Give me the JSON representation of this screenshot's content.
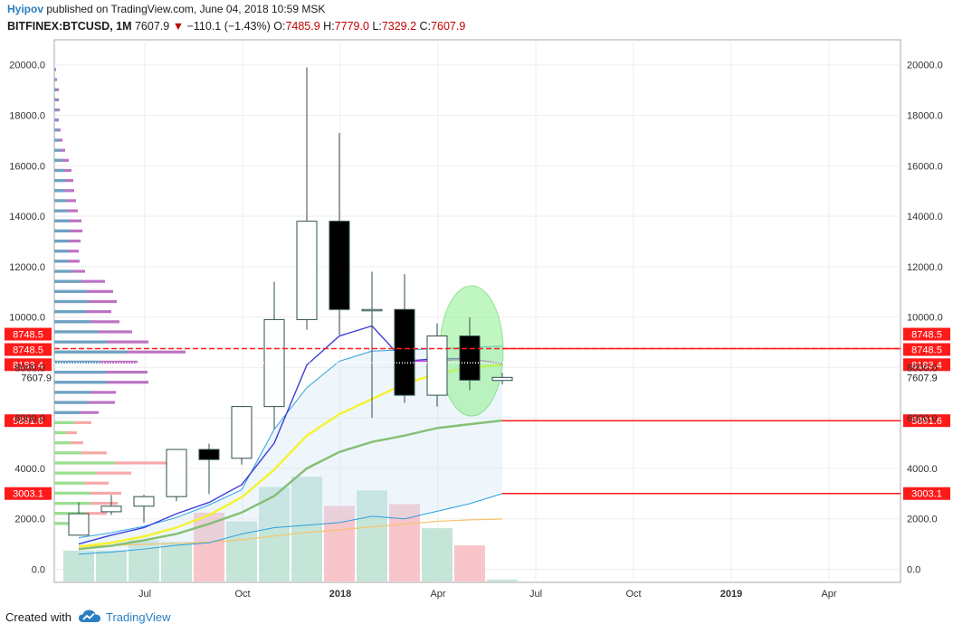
{
  "header": {
    "publisher": "Hyipov",
    "published_text": "published on TradingView.com, June 04, 2018 10:59 MSK",
    "symbol": "BITFINEX:BTCUSD, 1M",
    "last": "7607.9",
    "change": "−110.1 (−1.43%)",
    "o_label": "O:",
    "o_val": "7485.9",
    "h_label": "H:",
    "h_val": "7779.0",
    "l_label": "L:",
    "l_val": "7329.2",
    "c_label": "C:",
    "c_val": "7607.9"
  },
  "footer": {
    "created_with": "Created with",
    "brand": "TradingView"
  },
  "colors": {
    "up_body": "#ffffff",
    "down_body": "#000000",
    "candle_border": "#2f4f4f",
    "vol_up": "#b7dfcf",
    "vol_down": "#f6b6bd",
    "hline": "#ff1a1a",
    "ma_blue": "#3c3cd8",
    "ma_magenta": "#e040e0",
    "ma_yellow": "#f6f233",
    "ma_green": "#86bf76",
    "band_blue": "#2aa0e0",
    "band_orange": "#f5c46c",
    "highlight": "#8ef08e"
  },
  "chart_data": {
    "type": "candlestick",
    "symbol": "BITFINEX:BTCUSD",
    "interval": "1M",
    "x_ticks": [
      "Jul",
      "Oct",
      "2018",
      "Apr",
      "Jul",
      "Oct",
      "2019",
      "Apr"
    ],
    "y_ticks": [
      "0.0",
      "2000.0",
      "4000.0",
      "6000.0",
      "8000.0",
      "10000.0",
      "12000.0",
      "14000.0",
      "16000.0",
      "18000.0",
      "20000.0"
    ],
    "ylim": [
      -500,
      21000
    ],
    "candles": [
      {
        "date": "2017-05",
        "open": 1350,
        "high": 2650,
        "low": 1330,
        "close": 2200
      },
      {
        "date": "2017-06",
        "open": 2280,
        "high": 2950,
        "low": 2150,
        "close": 2500
      },
      {
        "date": "2017-07",
        "open": 2500,
        "high": 2950,
        "low": 1850,
        "close": 2880
      },
      {
        "date": "2017-08",
        "open": 2880,
        "high": 4750,
        "low": 2700,
        "close": 4750
      },
      {
        "date": "2017-09",
        "open": 4750,
        "high": 4980,
        "low": 2980,
        "close": 4350
      },
      {
        "date": "2017-10",
        "open": 4400,
        "high": 6450,
        "low": 4150,
        "close": 6450
      },
      {
        "date": "2017-11",
        "open": 6450,
        "high": 11400,
        "low": 5550,
        "close": 9900
      },
      {
        "date": "2017-12",
        "open": 9900,
        "high": 19900,
        "low": 9500,
        "close": 13800
      },
      {
        "date": "2018-01",
        "open": 13800,
        "high": 17300,
        "low": 9300,
        "close": 10300
      },
      {
        "date": "2018-02",
        "open": 10300,
        "high": 11800,
        "low": 6000,
        "close": 10300
      },
      {
        "date": "2018-03",
        "open": 10300,
        "high": 11700,
        "low": 6600,
        "close": 6900
      },
      {
        "date": "2018-04",
        "open": 6900,
        "high": 9750,
        "low": 6450,
        "close": 9250
      },
      {
        "date": "2018-05",
        "open": 9250,
        "high": 9990,
        "low": 7100,
        "close": 7500
      },
      {
        "date": "2018-06",
        "open": 7485.9,
        "high": 7779.0,
        "low": 7329.2,
        "close": 7607.9
      }
    ],
    "volume_relative": [
      {
        "date": "2017-05",
        "value": 0.18,
        "dir": "up"
      },
      {
        "date": "2017-06",
        "value": 0.18,
        "dir": "up"
      },
      {
        "date": "2017-07",
        "value": 0.24,
        "dir": "up"
      },
      {
        "date": "2017-08",
        "value": 0.23,
        "dir": "up"
      },
      {
        "date": "2017-09",
        "value": 0.4,
        "dir": "down"
      },
      {
        "date": "2017-10",
        "value": 0.35,
        "dir": "up"
      },
      {
        "date": "2017-11",
        "value": 0.55,
        "dir": "up"
      },
      {
        "date": "2017-12",
        "value": 0.61,
        "dir": "up"
      },
      {
        "date": "2018-01",
        "value": 0.44,
        "dir": "down"
      },
      {
        "date": "2018-02",
        "value": 0.53,
        "dir": "up"
      },
      {
        "date": "2018-03",
        "value": 0.45,
        "dir": "down"
      },
      {
        "date": "2018-04",
        "value": 0.31,
        "dir": "up"
      },
      {
        "date": "2018-05",
        "value": 0.21,
        "dir": "down"
      },
      {
        "date": "2018-06",
        "value": 0.01,
        "dir": "up"
      }
    ],
    "price_lines": [
      {
        "label": "8748.5",
        "value": 8748.5,
        "style": "solid"
      },
      {
        "label": "8748.5",
        "value": 8748.5,
        "style": "dashed"
      },
      {
        "label": "8183.4",
        "value": 8183.4,
        "style": "dotted"
      },
      {
        "label": "5891.6",
        "value": 5891.6,
        "style": "solid"
      },
      {
        "label": "3003.1",
        "value": 3003.1,
        "style": "solid"
      }
    ],
    "last_price_label": "7607.9",
    "indicators": {
      "ma_blue": [
        1000,
        1350,
        1650,
        2200,
        2650,
        3350,
        5000,
        8100,
        9250,
        9650,
        8250,
        8350,
        8350
      ],
      "ma_magenta_start_index": 10,
      "ma_magenta": [
        8250,
        8250,
        8350,
        8150
      ],
      "ma_yellow": [
        900,
        1050,
        1300,
        1650,
        2150,
        2850,
        3950,
        5300,
        6150,
        6750,
        7350,
        7750,
        8000,
        8100
      ],
      "ma_green": [
        800,
        930,
        1150,
        1400,
        1800,
        2250,
        2900,
        4000,
        4650,
        5050,
        5300,
        5600,
        5750,
        5900
      ],
      "band_upper": [
        1250,
        1450,
        1700,
        2050,
        2550,
        3150,
        5550,
        7200,
        8250,
        8650,
        8700,
        8750,
        8800,
        8850
      ],
      "band_lower": [
        600,
        680,
        800,
        950,
        1050,
        1400,
        1650,
        1750,
        1850,
        2100,
        2000,
        2300,
        2600,
        3000
      ],
      "band_orange": [
        900,
        940,
        990,
        1020,
        1080,
        1160,
        1320,
        1460,
        1560,
        1680,
        1790,
        1900,
        1960,
        1990
      ]
    },
    "volume_profile": [
      {
        "price": 19800,
        "total": 2,
        "buy": 1
      },
      {
        "price": 19400,
        "total": 3,
        "buy": 2
      },
      {
        "price": 19000,
        "total": 5,
        "buy": 2
      },
      {
        "price": 18600,
        "total": 5,
        "buy": 3
      },
      {
        "price": 18200,
        "total": 6,
        "buy": 3
      },
      {
        "price": 17800,
        "total": 5,
        "buy": 3
      },
      {
        "price": 17400,
        "total": 7,
        "buy": 4
      },
      {
        "price": 17000,
        "total": 9,
        "buy": 5
      },
      {
        "price": 16600,
        "total": 12,
        "buy": 7
      },
      {
        "price": 16200,
        "total": 16,
        "buy": 9
      },
      {
        "price": 15800,
        "total": 19,
        "buy": 11
      },
      {
        "price": 15400,
        "total": 21,
        "buy": 12
      },
      {
        "price": 15000,
        "total": 22,
        "buy": 12
      },
      {
        "price": 14600,
        "total": 24,
        "buy": 13
      },
      {
        "price": 14200,
        "total": 26,
        "buy": 14
      },
      {
        "price": 13800,
        "total": 30,
        "buy": 16
      },
      {
        "price": 13400,
        "total": 31,
        "buy": 17
      },
      {
        "price": 13000,
        "total": 29,
        "buy": 16
      },
      {
        "price": 12600,
        "total": 27,
        "buy": 15
      },
      {
        "price": 12200,
        "total": 28,
        "buy": 15
      },
      {
        "price": 11800,
        "total": 34,
        "buy": 20
      },
      {
        "price": 11400,
        "total": 56,
        "buy": 30
      },
      {
        "price": 11000,
        "total": 65,
        "buy": 36
      },
      {
        "price": 10600,
        "total": 69,
        "buy": 38
      },
      {
        "price": 10200,
        "total": 63,
        "buy": 35
      },
      {
        "price": 9800,
        "total": 72,
        "buy": 40
      },
      {
        "price": 9400,
        "total": 86,
        "buy": 48
      },
      {
        "price": 9000,
        "total": 104,
        "buy": 58
      },
      {
        "price": 8600,
        "total": 145,
        "buy": 80
      },
      {
        "price": 8200,
        "total": 92,
        "buy": 50
      },
      {
        "price": 7800,
        "total": 103,
        "buy": 57
      },
      {
        "price": 7400,
        "total": 104,
        "buy": 58
      },
      {
        "price": 7000,
        "total": 68,
        "buy": 40
      },
      {
        "price": 6600,
        "total": 67,
        "buy": 38
      },
      {
        "price": 6200,
        "total": 49,
        "buy": 28
      },
      {
        "price": 5800,
        "total": 41,
        "buy": 22
      },
      {
        "price": 5400,
        "total": 25,
        "buy": 13
      },
      {
        "price": 5000,
        "total": 32,
        "buy": 18
      },
      {
        "price": 4600,
        "total": 58,
        "buy": 30
      },
      {
        "price": 4200,
        "total": 125,
        "buy": 67
      },
      {
        "price": 3800,
        "total": 85,
        "buy": 46
      },
      {
        "price": 3400,
        "total": 60,
        "buy": 33
      },
      {
        "price": 3000,
        "total": 74,
        "buy": 40
      },
      {
        "price": 2600,
        "total": 70,
        "buy": 40
      },
      {
        "price": 2200,
        "total": 58,
        "buy": 34
      },
      {
        "price": 1800,
        "total": 38,
        "buy": 24
      }
    ]
  }
}
